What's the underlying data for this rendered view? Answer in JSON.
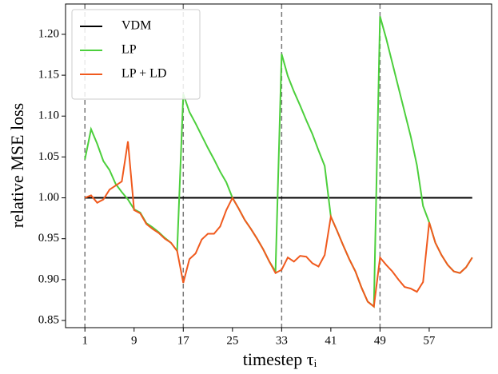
{
  "chart_data": {
    "type": "line",
    "xlabel": "timestep τᵢ",
    "ylabel": "relative MSE loss",
    "x": [
      1,
      2,
      3,
      4,
      5,
      6,
      7,
      8,
      9,
      10,
      11,
      12,
      13,
      14,
      15,
      16,
      17,
      18,
      19,
      20,
      21,
      22,
      23,
      24,
      25,
      26,
      27,
      28,
      29,
      30,
      31,
      32,
      33,
      34,
      35,
      36,
      37,
      38,
      39,
      40,
      41,
      42,
      43,
      44,
      45,
      46,
      47,
      48,
      49,
      50,
      51,
      52,
      53,
      54,
      55,
      56,
      57,
      58,
      59,
      60,
      61,
      62,
      63,
      64
    ],
    "series": [
      {
        "name": "VDM",
        "color": "#000000",
        "values": [
          1,
          1,
          1,
          1,
          1,
          1,
          1,
          1,
          1,
          1,
          1,
          1,
          1,
          1,
          1,
          1,
          1,
          1,
          1,
          1,
          1,
          1,
          1,
          1,
          1,
          1,
          1,
          1,
          1,
          1,
          1,
          1,
          1,
          1,
          1,
          1,
          1,
          1,
          1,
          1,
          1,
          1,
          1,
          1,
          1,
          1,
          1,
          1,
          1,
          1,
          1,
          1,
          1,
          1,
          1,
          1,
          1,
          1,
          1,
          1,
          1,
          1,
          1,
          1
        ]
      },
      {
        "name": "LP",
        "color": "#4ccf3c",
        "values": [
          1.047,
          1.084,
          1.066,
          1.045,
          1.034,
          1.017,
          1.007,
          0.998,
          0.986,
          0.982,
          0.969,
          0.964,
          0.958,
          0.951,
          0.945,
          0.935,
          1.127,
          1.105,
          1.091,
          1.076,
          1.061,
          1.047,
          1.032,
          1.019,
          1.0,
          0.987,
          0.973,
          0.962,
          0.95,
          0.937,
          0.922,
          0.91,
          1.176,
          1.149,
          1.13,
          1.113,
          1.095,
          1.078,
          1.058,
          1.039,
          0.977,
          0.96,
          0.942,
          0.925,
          0.91,
          0.89,
          0.873,
          0.867,
          1.222,
          1.195,
          1.165,
          1.135,
          1.105,
          1.075,
          1.04,
          0.99,
          0.97,
          0.945,
          0.93,
          0.918,
          0.91,
          0.908,
          0.915,
          0.927
        ]
      },
      {
        "name": "LP + LD",
        "color": "#f05a1e",
        "values": [
          1.0,
          1.003,
          0.994,
          0.998,
          1.01,
          1.015,
          1.02,
          1.069,
          0.985,
          0.981,
          0.968,
          0.962,
          0.957,
          0.95,
          0.945,
          0.935,
          0.896,
          0.925,
          0.932,
          0.949,
          0.956,
          0.956,
          0.965,
          0.985,
          1.0,
          0.987,
          0.973,
          0.962,
          0.95,
          0.937,
          0.922,
          0.908,
          0.912,
          0.927,
          0.922,
          0.929,
          0.928,
          0.92,
          0.916,
          0.93,
          0.977,
          0.96,
          0.942,
          0.925,
          0.91,
          0.89,
          0.873,
          0.867,
          0.927,
          0.918,
          0.91,
          0.9,
          0.891,
          0.889,
          0.885,
          0.897,
          0.97,
          0.945,
          0.93,
          0.918,
          0.91,
          0.908,
          0.915,
          0.927
        ]
      }
    ],
    "vlines": [
      1,
      17,
      33,
      49
    ],
    "xlim": [
      -2.15,
      67.15
    ],
    "ylim": [
      0.8412,
      1.2371
    ],
    "xticks": [
      1,
      9,
      17,
      25,
      33,
      41,
      49,
      57
    ],
    "yticks": [
      0.85,
      {
        "value": 0.9,
        "label": "0.90"
      },
      0.95,
      {
        "value": 1.0,
        "label": "1.00"
      },
      1.05,
      {
        "value": 1.1,
        "label": "1.10"
      },
      1.15,
      {
        "value": 1.2,
        "label": "1.20"
      }
    ],
    "legend": "upper left"
  }
}
